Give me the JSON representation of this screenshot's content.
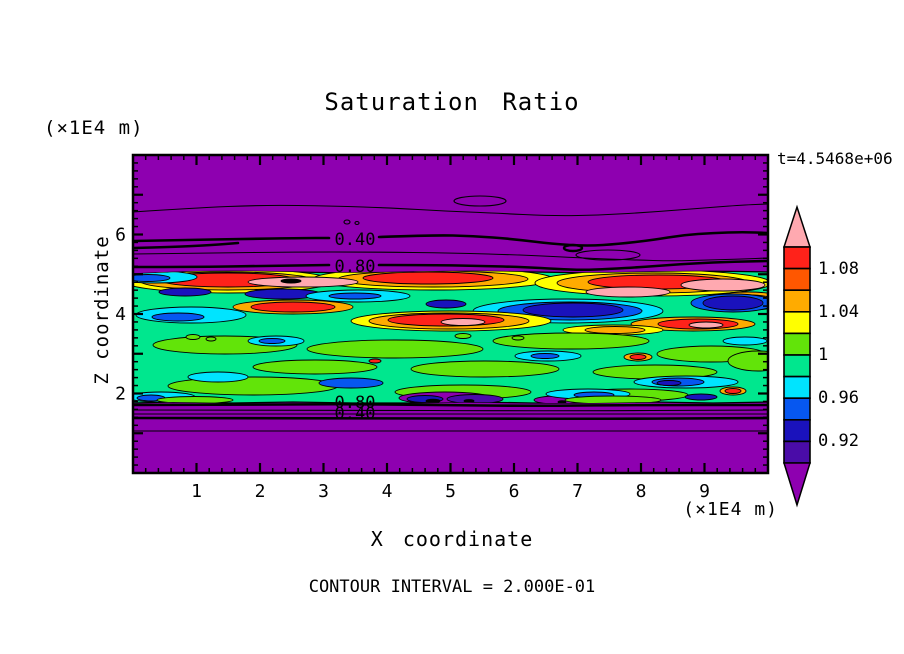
{
  "chart_data": {
    "type": "heatmap",
    "subtype": "filled-contour-plot",
    "title": "Saturation Ratio",
    "time_annotation": "t=4.5468e+06",
    "xlabel": "X coordinate",
    "ylabel": "Z coordinate",
    "x_units_label": "(×1E4 m)",
    "z_units_label": "(×1E4 m)",
    "contour_interval_label": "CONTOUR INTERVAL = 2.000E-01",
    "contour_interval": 0.2,
    "xlim": [
      0,
      10
    ],
    "zlim": [
      0,
      8
    ],
    "x_labeled_ticks": [
      1,
      2,
      3,
      4,
      5,
      6,
      7,
      8,
      9
    ],
    "z_labeled_ticks": [
      2,
      4,
      6
    ],
    "minor_tick_step": 0.2,
    "grid": false,
    "legend_position": "right-colorbar",
    "colorbar": {
      "tick_labels": [
        "1.08",
        "1.04",
        "1",
        "0.96",
        "0.92"
      ],
      "levels": [
        0.9,
        0.92,
        0.94,
        0.96,
        0.98,
        1.0,
        1.02,
        1.04,
        1.06,
        1.08,
        1.1
      ],
      "segment_colors_top_to_bottom": [
        "red",
        "orangered",
        "orange",
        "yellow",
        "green",
        "spring",
        "cyan",
        "blue",
        "navy",
        "indigo"
      ],
      "over_color": "pink",
      "under_color": "purple"
    },
    "palette": {
      "purple": "#8E00B0",
      "indigo": "#4A0CA8",
      "navy": "#1A12BC",
      "blue": "#0657F0",
      "cyan": "#00E4FF",
      "spring": "#00E78E",
      "green": "#62E409",
      "yellow": "#FFFF00",
      "orange": "#FFAB00",
      "orangered": "#FF5700",
      "red": "#FF221A",
      "pink": "#FFA9B0",
      "black": "#000000"
    },
    "field_background_value_color": "purple",
    "line_contour_labels": [
      {
        "text": "0.40",
        "x": 222,
        "y": 90
      },
      {
        "text": "0.80",
        "x": 222,
        "y": 117
      },
      {
        "text": "0.80",
        "x": 222,
        "y": 253
      },
      {
        "text": "0.40",
        "x": 222,
        "y": 264
      }
    ],
    "contour_lines": [
      {
        "w": "thin",
        "pts": [
          [
            0,
            57
          ],
          [
            60,
            53
          ],
          [
            130,
            50
          ],
          [
            200,
            51
          ],
          [
            260,
            53
          ],
          [
            310,
            56
          ],
          [
            360,
            58
          ],
          [
            420,
            61
          ],
          [
            470,
            60
          ],
          [
            520,
            57
          ],
          [
            570,
            53
          ],
          [
            610,
            50
          ],
          [
            635,
            49
          ]
        ]
      },
      {
        "w": "thick",
        "pts": [
          [
            0,
            86
          ],
          [
            50,
            85
          ],
          [
            110,
            84
          ],
          [
            170,
            83
          ],
          [
            196,
            83
          ]
        ]
      },
      {
        "w": "thick",
        "pts": [
          [
            246,
            82
          ],
          [
            300,
            80
          ],
          [
            340,
            81
          ],
          [
            380,
            84
          ],
          [
            420,
            89
          ],
          [
            455,
            91
          ],
          [
            485,
            89
          ],
          [
            520,
            85
          ],
          [
            550,
            80
          ],
          [
            580,
            78
          ],
          [
            610,
            77
          ],
          [
            635,
            78
          ]
        ]
      },
      {
        "w": "thick",
        "pts": [
          [
            0,
            93
          ],
          [
            40,
            92
          ],
          [
            80,
            90
          ],
          [
            105,
            88
          ]
        ]
      },
      {
        "w": "thin",
        "pts": [
          [
            0,
            99
          ],
          [
            80,
            98
          ],
          [
            160,
            97
          ],
          [
            240,
            97
          ],
          [
            320,
            98
          ],
          [
            390,
            100
          ],
          [
            450,
            103
          ],
          [
            500,
            105
          ],
          [
            540,
            106
          ],
          [
            575,
            105
          ],
          [
            610,
            104
          ],
          [
            635,
            103
          ]
        ]
      },
      {
        "w": "thick",
        "pts": [
          [
            0,
            112
          ],
          [
            60,
            112
          ],
          [
            130,
            111
          ],
          [
            196,
            110
          ]
        ]
      },
      {
        "w": "thick",
        "pts": [
          [
            246,
            110
          ],
          [
            300,
            110
          ],
          [
            350,
            111
          ],
          [
            390,
            112
          ],
          [
            425,
            114
          ],
          [
            450,
            115
          ],
          [
            475,
            114
          ],
          [
            510,
            112
          ],
          [
            550,
            109
          ],
          [
            590,
            107
          ],
          [
            635,
            106
          ]
        ]
      },
      {
        "w": "thick",
        "pts": [
          [
            0,
            250
          ],
          [
            100,
            250
          ],
          [
            200,
            249
          ],
          [
            300,
            250
          ],
          [
            400,
            251
          ],
          [
            500,
            250
          ],
          [
            635,
            250
          ]
        ]
      },
      {
        "w": "thin",
        "pts": [
          [
            0,
            255
          ],
          [
            200,
            255
          ],
          [
            400,
            256
          ],
          [
            635,
            255
          ]
        ]
      },
      {
        "w": "thin",
        "pts": [
          [
            0,
            259
          ],
          [
            300,
            259
          ],
          [
            635,
            259
          ]
        ]
      },
      {
        "w": "thick",
        "pts": [
          [
            0,
            263
          ],
          [
            200,
            263
          ],
          [
            450,
            264
          ],
          [
            635,
            263
          ]
        ]
      },
      {
        "w": "thin",
        "pts": [
          [
            0,
            276
          ],
          [
            635,
            276
          ]
        ]
      }
    ],
    "contour_loops": [
      {
        "cx": 347,
        "cy": 46,
        "rx": 26,
        "ry": 5,
        "w": "thin"
      },
      {
        "cx": 214,
        "cy": 67,
        "rx": 3,
        "ry": 2,
        "w": "thin"
      },
      {
        "cx": 224,
        "cy": 68,
        "rx": 2,
        "ry": 1.5,
        "w": "thin"
      },
      {
        "cx": 440,
        "cy": 93,
        "rx": 9,
        "ry": 3,
        "w": "thick"
      },
      {
        "cx": 475,
        "cy": 100,
        "rx": 32,
        "ry": 5,
        "w": "thin"
      }
    ],
    "band": {
      "fill": "spring",
      "top_pts": [
        [
          0,
          119
        ],
        [
          40,
          117
        ],
        [
          100,
          116
        ],
        [
          160,
          117
        ],
        [
          220,
          118
        ],
        [
          280,
          117
        ],
        [
          340,
          116
        ],
        [
          400,
          117
        ],
        [
          460,
          118
        ],
        [
          520,
          117
        ],
        [
          580,
          116
        ],
        [
          635,
          117
        ]
      ],
      "bottom_pts": [
        [
          635,
          247
        ],
        [
          580,
          248
        ],
        [
          520,
          247
        ],
        [
          460,
          248
        ],
        [
          400,
          248
        ],
        [
          340,
          247
        ],
        [
          280,
          248
        ],
        [
          220,
          248
        ],
        [
          160,
          247
        ],
        [
          100,
          248
        ],
        [
          40,
          247
        ],
        [
          0,
          248
        ]
      ]
    },
    "field_patches": [
      [
        95,
        126,
        105,
        12,
        "yellow"
      ],
      [
        95,
        126,
        88,
        9,
        "orange"
      ],
      [
        95,
        125,
        68,
        7,
        "red"
      ],
      [
        300,
        124,
        120,
        11,
        "yellow"
      ],
      [
        300,
        124,
        95,
        8,
        "orange"
      ],
      [
        295,
        123,
        65,
        6,
        "red"
      ],
      [
        520,
        128,
        118,
        13,
        "yellow"
      ],
      [
        520,
        128,
        96,
        10,
        "orange"
      ],
      [
        525,
        127,
        70,
        7,
        "red"
      ],
      [
        170,
        127,
        55,
        5,
        "pink"
      ],
      [
        158,
        126,
        10,
        2,
        "black"
      ],
      [
        495,
        137,
        42,
        5,
        "pink"
      ],
      [
        590,
        130,
        42,
        6,
        "pink"
      ],
      [
        22,
        122,
        42,
        6,
        "cyan"
      ],
      [
        15,
        123,
        22,
        3.5,
        "blue"
      ],
      [
        52,
        137,
        26,
        4,
        "navy"
      ],
      [
        150,
        139,
        38,
        5,
        "navy"
      ],
      [
        225,
        141,
        52,
        6,
        "cyan"
      ],
      [
        222,
        141,
        26,
        3,
        "blue"
      ],
      [
        615,
        146,
        40,
        9,
        "orange"
      ],
      [
        618,
        146,
        24,
        6,
        "pink"
      ],
      [
        435,
        156,
        95,
        12,
        "cyan"
      ],
      [
        437,
        156,
        72,
        9,
        "blue"
      ],
      [
        440,
        155,
        50,
        7,
        "navy"
      ],
      [
        600,
        148,
        42,
        9,
        "blue"
      ],
      [
        600,
        148,
        30,
        7,
        "navy"
      ],
      [
        313,
        149,
        20,
        4,
        "navy"
      ],
      [
        160,
        152,
        60,
        7,
        "orange"
      ],
      [
        160,
        152,
        42,
        5,
        "red"
      ],
      [
        318,
        166,
        100,
        10,
        "yellow"
      ],
      [
        316,
        166,
        80,
        8,
        "orange"
      ],
      [
        313,
        165,
        58,
        6,
        "red"
      ],
      [
        330,
        167,
        22,
        3.5,
        "pink"
      ],
      [
        58,
        160,
        55,
        8,
        "cyan"
      ],
      [
        45,
        162,
        26,
        4,
        "blue"
      ],
      [
        560,
        169,
        62,
        7,
        "orange"
      ],
      [
        565,
        169,
        40,
        5,
        "red"
      ],
      [
        573,
        170,
        17,
        3,
        "pink"
      ],
      [
        480,
        175,
        50,
        5,
        "yellow"
      ],
      [
        482,
        175,
        30,
        3.5,
        "orange"
      ],
      [
        92,
        190,
        72,
        9,
        "green"
      ],
      [
        262,
        194,
        88,
        9,
        "green"
      ],
      [
        438,
        186,
        78,
        8,
        "green"
      ],
      [
        578,
        199,
        54,
        8,
        "green"
      ],
      [
        625,
        206,
        30,
        10,
        "green"
      ],
      [
        182,
        212,
        62,
        7,
        "green"
      ],
      [
        352,
        214,
        74,
        8,
        "green"
      ],
      [
        522,
        217,
        62,
        7,
        "green"
      ],
      [
        143,
        186,
        28,
        5,
        "cyan"
      ],
      [
        139,
        186,
        13,
        2.5,
        "blue"
      ],
      [
        415,
        201,
        33,
        5,
        "cyan"
      ],
      [
        412,
        201,
        14,
        2.5,
        "blue"
      ],
      [
        505,
        202,
        14,
        4,
        "orange"
      ],
      [
        505,
        202,
        8,
        2.5,
        "red"
      ],
      [
        242,
        206,
        6,
        2,
        "red"
      ],
      [
        60,
        182,
        7,
        2.5,
        "green"
      ],
      [
        78,
        184,
        5,
        2,
        "green"
      ],
      [
        330,
        181,
        8,
        2.5,
        "green"
      ],
      [
        385,
        183,
        6,
        2,
        "green"
      ],
      [
        612,
        186,
        22,
        4,
        "cyan"
      ],
      [
        120,
        231,
        85,
        9,
        "green"
      ],
      [
        330,
        237,
        68,
        7,
        "green"
      ],
      [
        553,
        227,
        52,
        6,
        "cyan"
      ],
      [
        545,
        227,
        26,
        4,
        "blue"
      ],
      [
        536,
        228,
        12,
        2.5,
        "navy"
      ],
      [
        85,
        222,
        30,
        5,
        "cyan"
      ],
      [
        218,
        228,
        32,
        5,
        "blue"
      ],
      [
        497,
        240,
        58,
        6,
        "green"
      ],
      [
        312,
        243,
        46,
        6,
        "purple"
      ],
      [
        342,
        244,
        28,
        4.5,
        "indigo"
      ],
      [
        292,
        244,
        18,
        3.5,
        "navy"
      ],
      [
        300,
        246,
        7,
        1.8,
        "black"
      ],
      [
        336,
        246,
        5,
        1.4,
        "black"
      ],
      [
        425,
        245,
        24,
        4,
        "purple"
      ],
      [
        429,
        247,
        4,
        1.3,
        "black"
      ],
      [
        455,
        239,
        42,
        5,
        "cyan"
      ],
      [
        461,
        240,
        20,
        3,
        "blue"
      ],
      [
        480,
        245,
        48,
        4,
        "green"
      ],
      [
        28,
        242,
        34,
        5,
        "cyan"
      ],
      [
        18,
        243,
        14,
        3,
        "blue"
      ],
      [
        62,
        245,
        38,
        3.5,
        "green"
      ],
      [
        600,
        236,
        13,
        4,
        "orange"
      ],
      [
        600,
        236,
        8,
        2.5,
        "red"
      ],
      [
        568,
        242,
        16,
        3,
        "navy"
      ]
    ]
  }
}
